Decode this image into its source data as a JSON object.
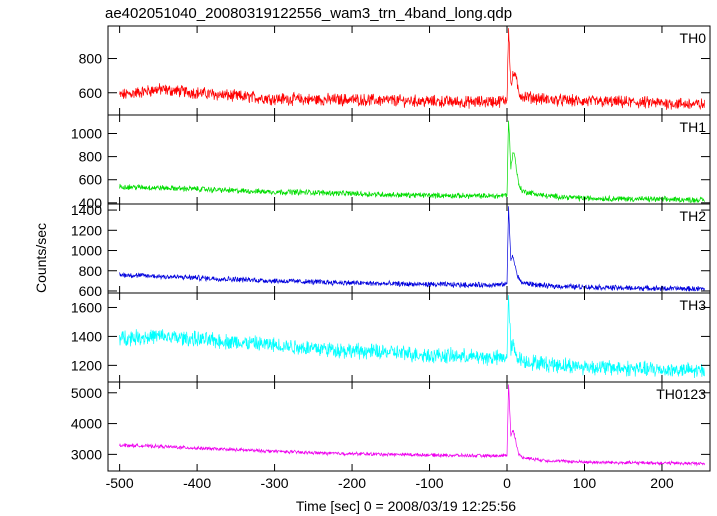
{
  "chart_data": {
    "type": "line",
    "title": "ae402051040_20080319122556_wam3_trn_4band_long.qdp",
    "xlabel": "Time [sec] 0 = 2008/03/19 12:25:56",
    "ylabel": "Counts/sec",
    "xlim": [
      -515,
      262
    ],
    "x_ticks": [
      -500,
      -400,
      -300,
      -200,
      -100,
      0,
      100,
      200
    ],
    "panels": [
      {
        "label": "TH0",
        "color": "#ff0000",
        "ylim": [
          470,
          990
        ],
        "y_ticks": [
          600,
          800
        ],
        "x": [
          -500,
          -450,
          -400,
          -350,
          -300,
          -250,
          -200,
          -150,
          -100,
          -50,
          -10,
          0,
          2,
          5,
          8,
          10,
          15,
          20,
          50,
          100,
          150,
          200,
          255
        ],
        "values": [
          585,
          620,
          600,
          580,
          565,
          560,
          560,
          555,
          550,
          545,
          550,
          560,
          990,
          640,
          700,
          720,
          600,
          580,
          560,
          550,
          545,
          540,
          530
        ],
        "noise": 30
      },
      {
        "label": "TH1",
        "color": "#00dd00",
        "ylim": [
          390,
          1160
        ],
        "y_ticks": [
          400,
          600,
          800,
          1000
        ],
        "x": [
          -500,
          -450,
          -400,
          -350,
          -300,
          -250,
          -200,
          -150,
          -100,
          -50,
          -10,
          0,
          2,
          5,
          8,
          10,
          15,
          20,
          50,
          100,
          150,
          200,
          255
        ],
        "values": [
          540,
          530,
          520,
          505,
          495,
          490,
          480,
          470,
          465,
          460,
          460,
          470,
          1130,
          700,
          850,
          800,
          560,
          500,
          460,
          440,
          435,
          430,
          425
        ],
        "noise": 20
      },
      {
        "label": "TH2",
        "color": "#0000dd",
        "ylim": [
          580,
          1460
        ],
        "y_ticks": [
          600,
          800,
          1000,
          1200,
          1400
        ],
        "x": [
          -500,
          -450,
          -400,
          -350,
          -300,
          -250,
          -200,
          -150,
          -100,
          -50,
          -10,
          0,
          2,
          5,
          8,
          10,
          15,
          20,
          50,
          100,
          150,
          200,
          255
        ],
        "values": [
          760,
          745,
          730,
          715,
          700,
          690,
          680,
          670,
          665,
          660,
          660,
          670,
          1440,
          900,
          950,
          850,
          720,
          680,
          650,
          640,
          630,
          625,
          620
        ],
        "noise": 22
      },
      {
        "label": "TH3",
        "color": "#00ffff",
        "ylim": [
          1085,
          1700
        ],
        "y_ticks": [
          1200,
          1400,
          1600
        ],
        "x": [
          -500,
          -450,
          -400,
          -350,
          -300,
          -250,
          -200,
          -150,
          -100,
          -50,
          -10,
          0,
          2,
          5,
          8,
          10,
          15,
          20,
          50,
          100,
          150,
          200,
          255
        ],
        "values": [
          1390,
          1400,
          1380,
          1360,
          1340,
          1320,
          1300,
          1290,
          1270,
          1260,
          1250,
          1260,
          1680,
          1320,
          1340,
          1300,
          1250,
          1230,
          1210,
          1190,
          1180,
          1170,
          1160
        ],
        "noise": 45
      },
      {
        "label": "TH0123",
        "color": "#ee00ee",
        "ylim": [
          2460,
          5350
        ],
        "y_ticks": [
          3000,
          4000,
          5000
        ],
        "x": [
          -500,
          -450,
          -400,
          -350,
          -300,
          -250,
          -200,
          -150,
          -100,
          -50,
          -10,
          0,
          2,
          5,
          8,
          10,
          15,
          20,
          50,
          100,
          150,
          200,
          255
        ],
        "values": [
          3300,
          3260,
          3200,
          3150,
          3100,
          3050,
          3020,
          3000,
          2980,
          2960,
          2950,
          2970,
          5300,
          3600,
          3800,
          3600,
          3000,
          2900,
          2800,
          2750,
          2730,
          2720,
          2700
        ],
        "noise": 45
      }
    ]
  }
}
